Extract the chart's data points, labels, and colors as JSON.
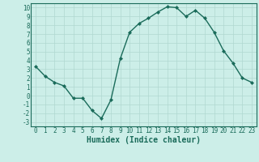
{
  "x": [
    0,
    1,
    2,
    3,
    4,
    5,
    6,
    7,
    8,
    9,
    10,
    11,
    12,
    13,
    14,
    15,
    16,
    17,
    18,
    19,
    20,
    21,
    22,
    23
  ],
  "y": [
    3.3,
    2.2,
    1.5,
    1.1,
    -0.3,
    -0.3,
    -1.7,
    -2.6,
    -0.5,
    4.2,
    7.2,
    8.2,
    8.8,
    9.5,
    10.1,
    10.0,
    9.0,
    9.7,
    8.8,
    7.2,
    5.1,
    3.7,
    2.0,
    1.5
  ],
  "line_color": "#1a6b5a",
  "marker": "D",
  "marker_size": 2,
  "bg_color": "#cceee8",
  "grid_color": "#b0d8d0",
  "xlabel": "Humidex (Indice chaleur)",
  "xlabel_fontsize": 7,
  "xlabel_bold": true,
  "xlim": [
    -0.5,
    23.5
  ],
  "ylim": [
    -3.5,
    10.5
  ],
  "yticks": [
    -3,
    -2,
    -1,
    0,
    1,
    2,
    3,
    4,
    5,
    6,
    7,
    8,
    9,
    10
  ],
  "xticks": [
    0,
    1,
    2,
    3,
    4,
    5,
    6,
    7,
    8,
    9,
    10,
    11,
    12,
    13,
    14,
    15,
    16,
    17,
    18,
    19,
    20,
    21,
    22,
    23
  ],
  "tick_fontsize": 5.5,
  "line_width": 1.0
}
